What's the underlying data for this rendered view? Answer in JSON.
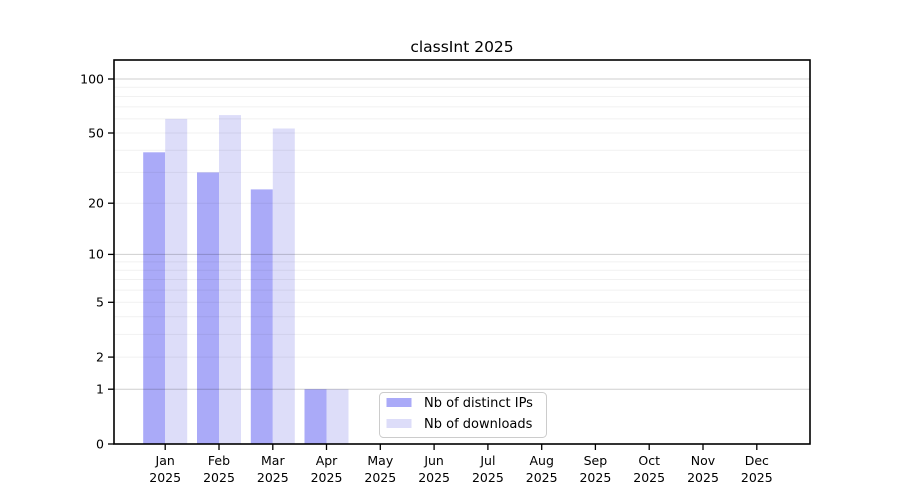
{
  "title": "classInt 2025",
  "colors": {
    "ips_bar": "#aaaaf8",
    "downloads_bar": "#ddddf9",
    "major_gridline": "rgba(0,0,0,0.19)",
    "minor_gridline": "rgba(0,0,0,0.055)",
    "axis": "#000000",
    "legend_border": "#cccccc",
    "legend_background": "rgba(255,255,255,0.85)"
  },
  "chart_data": {
    "type": "bar",
    "title": "classInt 2025",
    "x_months": [
      "Jan",
      "Feb",
      "Mar",
      "Apr",
      "May",
      "Jun",
      "Jul",
      "Aug",
      "Sep",
      "Oct",
      "Nov",
      "Dec"
    ],
    "x_year": "2025",
    "series": [
      {
        "name": "Nb of distinct IPs",
        "color": "#aaaaf8",
        "values": [
          39,
          30,
          24,
          1,
          null,
          null,
          null,
          null,
          null,
          null,
          null,
          null
        ]
      },
      {
        "name": "Nb of downloads",
        "color": "#ddddf9",
        "values": [
          60,
          63,
          53,
          1,
          null,
          null,
          null,
          null,
          null,
          null,
          null,
          null
        ]
      }
    ],
    "yscale": "symlog (log1p)",
    "ylim": [
      0,
      124
    ],
    "y_tick_values": [
      0,
      1,
      2,
      5,
      10,
      20,
      50,
      100
    ],
    "y_major_gridlines": [
      1,
      10,
      100
    ],
    "y_minor_gridlines": [
      2,
      3,
      4,
      5,
      6,
      7,
      8,
      9,
      20,
      30,
      40,
      50,
      60,
      70,
      80,
      90
    ],
    "grid": "on",
    "legend_position": "inside bottom-center"
  }
}
